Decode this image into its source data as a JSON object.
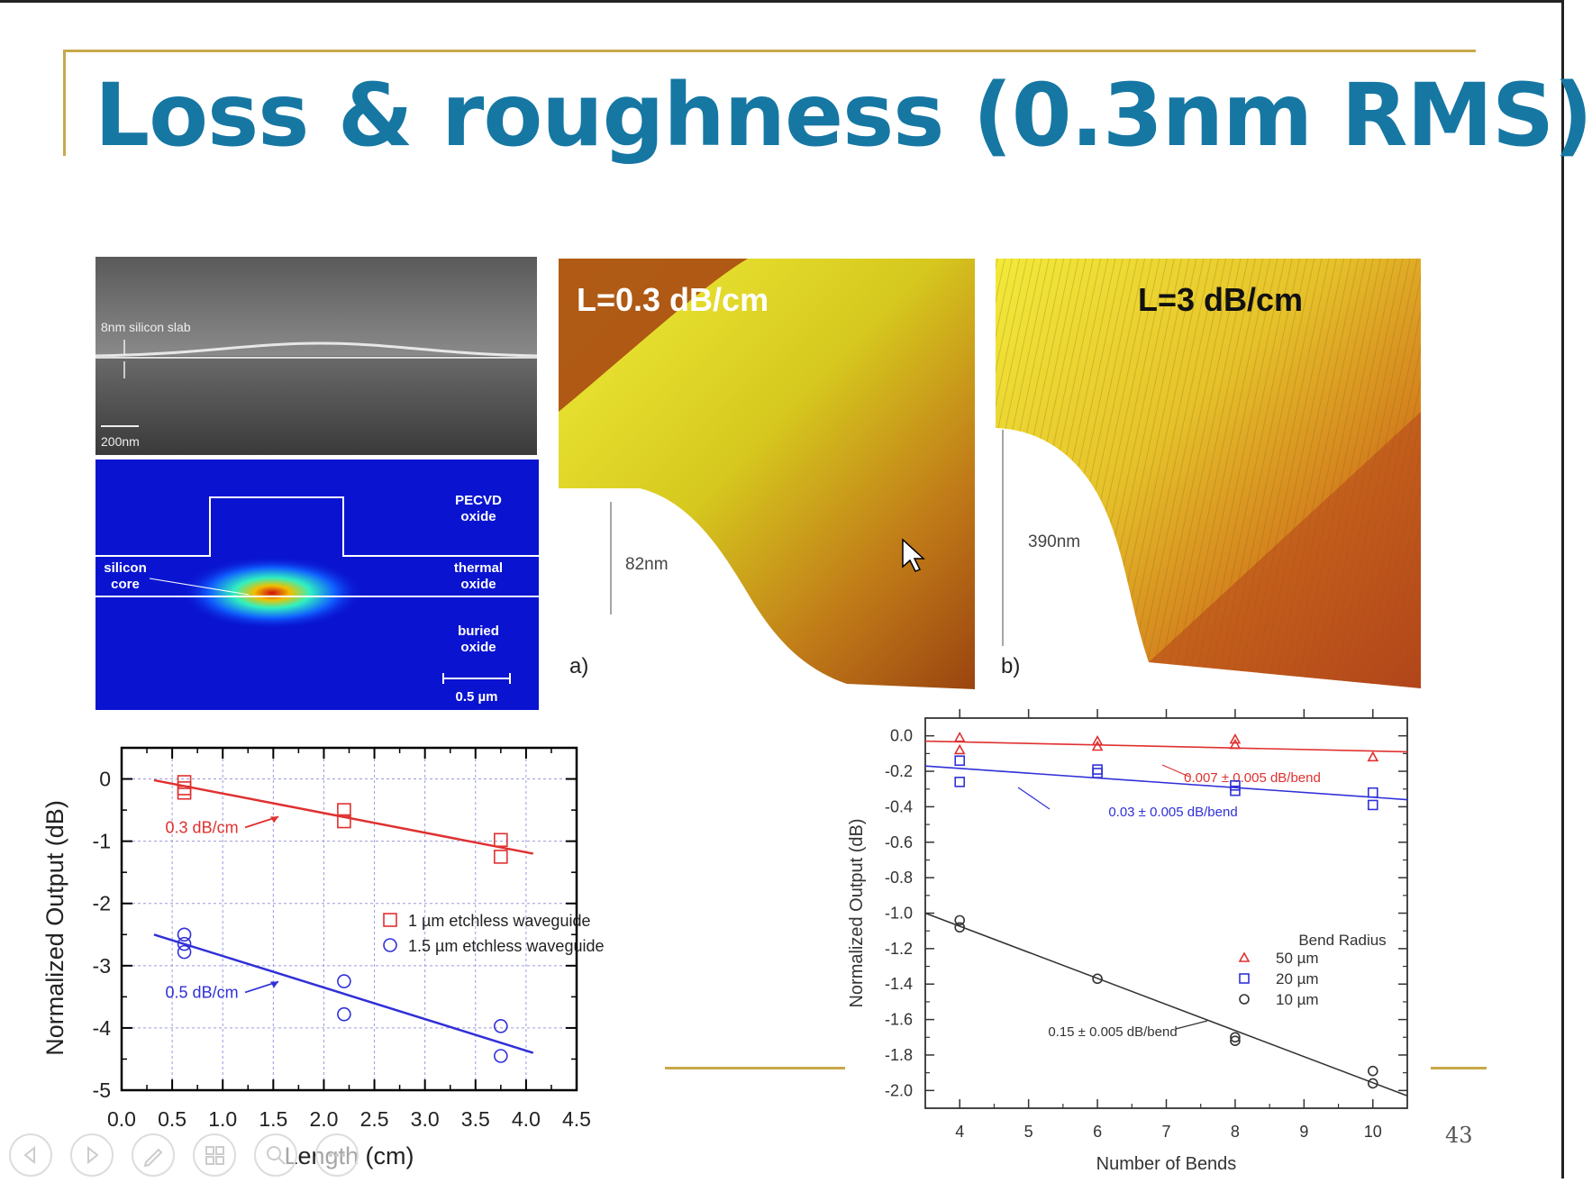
{
  "slide": {
    "title": "Loss & roughness (0.3nm RMS)",
    "page_number": "43"
  },
  "sem_image": {
    "slab_label": "8nm silicon slab",
    "scale_label": "200nm"
  },
  "mode_image": {
    "labels": [
      "PECVD",
      "oxide",
      "thermal",
      "oxide",
      "silicon",
      "core",
      "buried",
      "oxide"
    ],
    "scale_label": "0.5 µm"
  },
  "afm_a": {
    "loss_label": "L=0.3 dB/cm",
    "height_label": "82nm",
    "panel_label": "a)"
  },
  "afm_b": {
    "loss_label": "L=3 dB/cm",
    "height_label": "390nm",
    "panel_label": "b)"
  },
  "chart_data": [
    {
      "type": "scatter",
      "xlabel": "Length (cm)",
      "ylabel": "Normalized Output (dB)",
      "xlim": [
        0.0,
        4.5
      ],
      "ylim": [
        -5,
        0.5
      ],
      "xticks": [
        "0.0",
        "0.5",
        "1.0",
        "1.5",
        "2.0",
        "2.5",
        "3.0",
        "3.5",
        "4.0",
        "4.5"
      ],
      "yticks": [
        "0",
        "-1",
        "-2",
        "-3",
        "-4",
        "-5"
      ],
      "grid": true,
      "legend_position": "center-right",
      "series": [
        {
          "name": "1 µm etchless waveguide",
          "color": "#e03030",
          "marker": "square",
          "x": [
            0.62,
            0.62,
            0.62,
            2.2,
            2.2,
            3.75,
            3.75
          ],
          "y": [
            -0.05,
            -0.15,
            -0.22,
            -0.5,
            -0.68,
            -0.98,
            -1.25
          ],
          "fit": {
            "x": [
              0.32,
              4.07
            ],
            "y": [
              -0.02,
              -1.2
            ]
          },
          "fit_label": "0.3 dB/cm"
        },
        {
          "name": "1.5 µm etchless waveguide",
          "color": "#3030d8",
          "marker": "circle",
          "x": [
            0.62,
            0.62,
            0.62,
            2.2,
            2.2,
            3.75,
            3.75
          ],
          "y": [
            -2.5,
            -2.65,
            -2.78,
            -3.25,
            -3.78,
            -3.97,
            -4.45
          ],
          "fit": {
            "x": [
              0.32,
              4.07
            ],
            "y": [
              -2.5,
              -4.4
            ]
          },
          "fit_label": "0.5 dB/cm"
        }
      ]
    },
    {
      "type": "scatter",
      "xlabel": "Number of Bends",
      "ylabel": "Normalized Output (dB)",
      "xlim": [
        3.5,
        10.5
      ],
      "ylim": [
        -2.1,
        0.1
      ],
      "xticks": [
        "4",
        "5",
        "6",
        "7",
        "8",
        "9",
        "10"
      ],
      "yticks": [
        "0.0",
        "-0.2",
        "-0.4",
        "-0.6",
        "-0.8",
        "-1.0",
        "-1.2",
        "-1.4",
        "-1.6",
        "-1.8",
        "-2.0"
      ],
      "grid": false,
      "legend_title": "Bend Radius",
      "legend_position": "center-right",
      "series": [
        {
          "name": "50 µm",
          "color": "#e03030",
          "marker": "triangle",
          "x": [
            4,
            4,
            6,
            6,
            8,
            8,
            10
          ],
          "y": [
            -0.01,
            -0.08,
            -0.03,
            -0.06,
            -0.02,
            -0.05,
            -0.12
          ],
          "fit": {
            "x": [
              3.5,
              10.5
            ],
            "y": [
              -0.03,
              -0.09
            ]
          },
          "fit_label": "0.007 ± 0.005 dB/bend"
        },
        {
          "name": "20 µm",
          "color": "#3030d8",
          "marker": "square",
          "x": [
            4,
            4,
            6,
            6,
            8,
            8,
            10,
            10
          ],
          "y": [
            -0.14,
            -0.26,
            -0.19,
            -0.21,
            -0.28,
            -0.31,
            -0.32,
            -0.39
          ],
          "fit": {
            "x": [
              3.5,
              10.5
            ],
            "y": [
              -0.17,
              -0.36
            ]
          },
          "fit_label": "0.03 ± 0.005 dB/bend"
        },
        {
          "name": "10 µm",
          "color": "#333333",
          "marker": "circle",
          "x": [
            4,
            4,
            6,
            8,
            8,
            10,
            10
          ],
          "y": [
            -1.04,
            -1.08,
            -1.37,
            -1.7,
            -1.72,
            -1.89,
            -1.96
          ],
          "fit": {
            "x": [
              3.5,
              10.5
            ],
            "y": [
              -1.0,
              -2.03
            ]
          },
          "fit_label": "0.15 ± 0.005 dB/bend"
        }
      ]
    }
  ]
}
